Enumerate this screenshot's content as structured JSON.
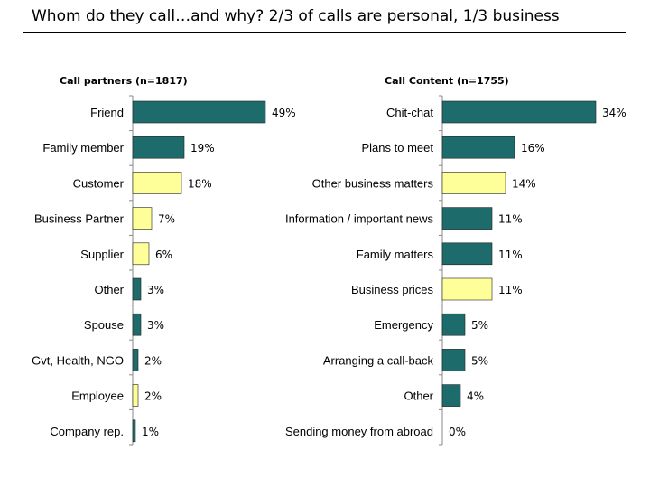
{
  "title": "Whom do they call…and why? 2/3 of calls are personal, 1/3 business",
  "colors": {
    "business": "#ffff99",
    "personal": "#1d6b6b",
    "stroke": "#222222"
  },
  "chart_data": [
    {
      "type": "bar",
      "orientation": "horizontal",
      "title": "Call partners (n=1817)",
      "categories": [
        "Friend",
        "Family member",
        "Customer",
        "Business Partner",
        "Supplier",
        "Other",
        "Spouse",
        "Gvt, Health, NGO",
        "Employee",
        "Company rep."
      ],
      "values": [
        49,
        19,
        18,
        7,
        6,
        3,
        3,
        2,
        2,
        1
      ],
      "labels": [
        "49%",
        "19%",
        "18%",
        "7%",
        "6%",
        "3%",
        "3%",
        "2%",
        "2%",
        "1%"
      ],
      "kinds": [
        "personal",
        "personal",
        "business",
        "business",
        "business",
        "personal",
        "personal",
        "personal",
        "business",
        "personal"
      ],
      "unit": "%"
    },
    {
      "type": "bar",
      "orientation": "horizontal",
      "title": "Call Content (n=1755)",
      "categories": [
        "Chit-chat",
        "Plans to meet",
        "Other business matters",
        "Information / important news",
        "Family matters",
        "Business prices",
        "Emergency",
        "Arranging a call-back",
        "Other",
        "Sending money from abroad"
      ],
      "values": [
        34,
        16,
        14,
        11,
        11,
        11,
        5,
        5,
        4,
        0
      ],
      "labels": [
        "34%",
        "16%",
        "14%",
        "11%",
        "11%",
        "11%",
        "5%",
        "5%",
        "4%",
        "0%"
      ],
      "kinds": [
        "personal",
        "personal",
        "business",
        "personal",
        "personal",
        "business",
        "personal",
        "personal",
        "personal",
        "personal"
      ],
      "unit": "%"
    }
  ]
}
